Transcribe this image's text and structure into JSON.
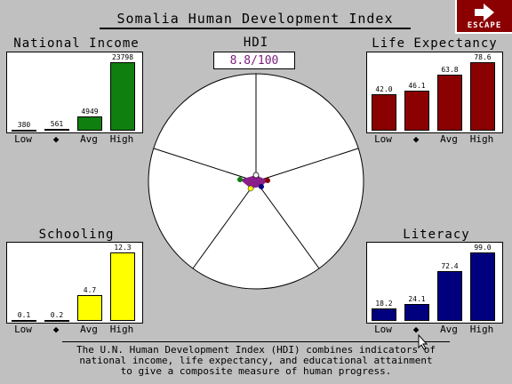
{
  "title": "Somalia Human Development Index",
  "escape": {
    "label": "ESCAPE",
    "icon": "arrow-right-icon"
  },
  "hdi": {
    "label": "HDI",
    "value": "8.8/100"
  },
  "description": {
    "line1": "The U.N. Human Development Index (HDI) combines indicators of",
    "line2": "national income, life expectancy, and educational attainment",
    "line3": "to give a composite measure of human progress."
  },
  "charts": {
    "income": {
      "title": "National Income",
      "color": "#0f7f0f",
      "ticks": [
        "Low",
        "◆",
        "Avg",
        "High"
      ],
      "labels": [
        "380",
        "561",
        "4949",
        "23798"
      ],
      "values": [
        380,
        561,
        4949,
        23798
      ],
      "max": 23798
    },
    "life": {
      "title": "Life Expectancy",
      "color": "#8b0000",
      "ticks": [
        "Low",
        "◆",
        "Avg",
        "High"
      ],
      "labels": [
        "42.0",
        "46.1",
        "63.8",
        "78.6"
      ],
      "values": [
        42.0,
        46.1,
        63.8,
        78.6
      ],
      "max": 78.6
    },
    "schooling": {
      "title": "Schooling",
      "color": "#ffff00",
      "ticks": [
        "Low",
        "◆",
        "Avg",
        "High"
      ],
      "labels": [
        "0.1",
        "0.2",
        "4.7",
        "12.3"
      ],
      "values": [
        0.1,
        0.2,
        4.7,
        12.3
      ],
      "max": 12.3
    },
    "literacy": {
      "title": "Literacy",
      "color": "#00007f",
      "ticks": [
        "Low",
        "◆",
        "Avg",
        "High"
      ],
      "labels": [
        "18.2",
        "24.1",
        "72.4",
        "99.0"
      ],
      "values": [
        18.2,
        24.1,
        72.4,
        99.0
      ],
      "max": 99.0
    }
  },
  "colors": {
    "background": "#c0c0c0",
    "hdi_value": "#7a1d7a"
  }
}
